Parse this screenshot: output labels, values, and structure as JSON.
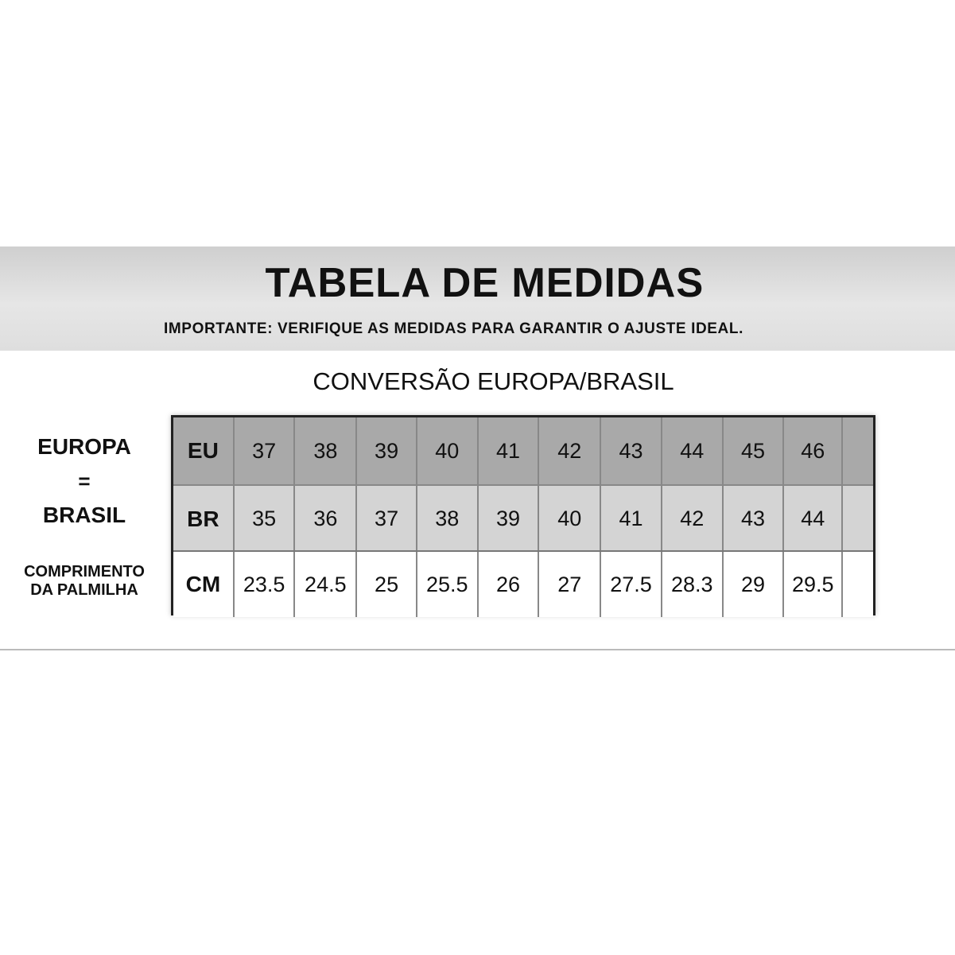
{
  "header": {
    "title": "TABELA DE MEDIDAS",
    "subtitle": "IMPORTANTE: VERIFIQUE AS MEDIDAS PARA GARANTIR O AJUSTE IDEAL."
  },
  "section_title": "CONVERSÃO EUROPA/BRASIL",
  "side_labels": {
    "europa": "EUROPA",
    "equals": "=",
    "brasil": "BRASIL",
    "comprimento_line1": "COMPRIMENTO",
    "comprimento_line2": "DA PALMILHA"
  },
  "table": {
    "rows": [
      {
        "label": "EU",
        "values": [
          "37",
          "38",
          "39",
          "40",
          "41",
          "42",
          "43",
          "44",
          "45",
          "46",
          ""
        ]
      },
      {
        "label": "BR",
        "values": [
          "35",
          "36",
          "37",
          "38",
          "39",
          "40",
          "41",
          "42",
          "43",
          "44",
          ""
        ]
      },
      {
        "label": "CM",
        "values": [
          "23.5",
          "24.5",
          "25",
          "25.5",
          "26",
          "27",
          "27.5",
          "28.3",
          "29",
          "29.5",
          ""
        ]
      }
    ]
  },
  "colors": {
    "eu_row": "#a9a9a9",
    "br_row": "#d4d4d4",
    "cm_row": "#ffffff"
  }
}
